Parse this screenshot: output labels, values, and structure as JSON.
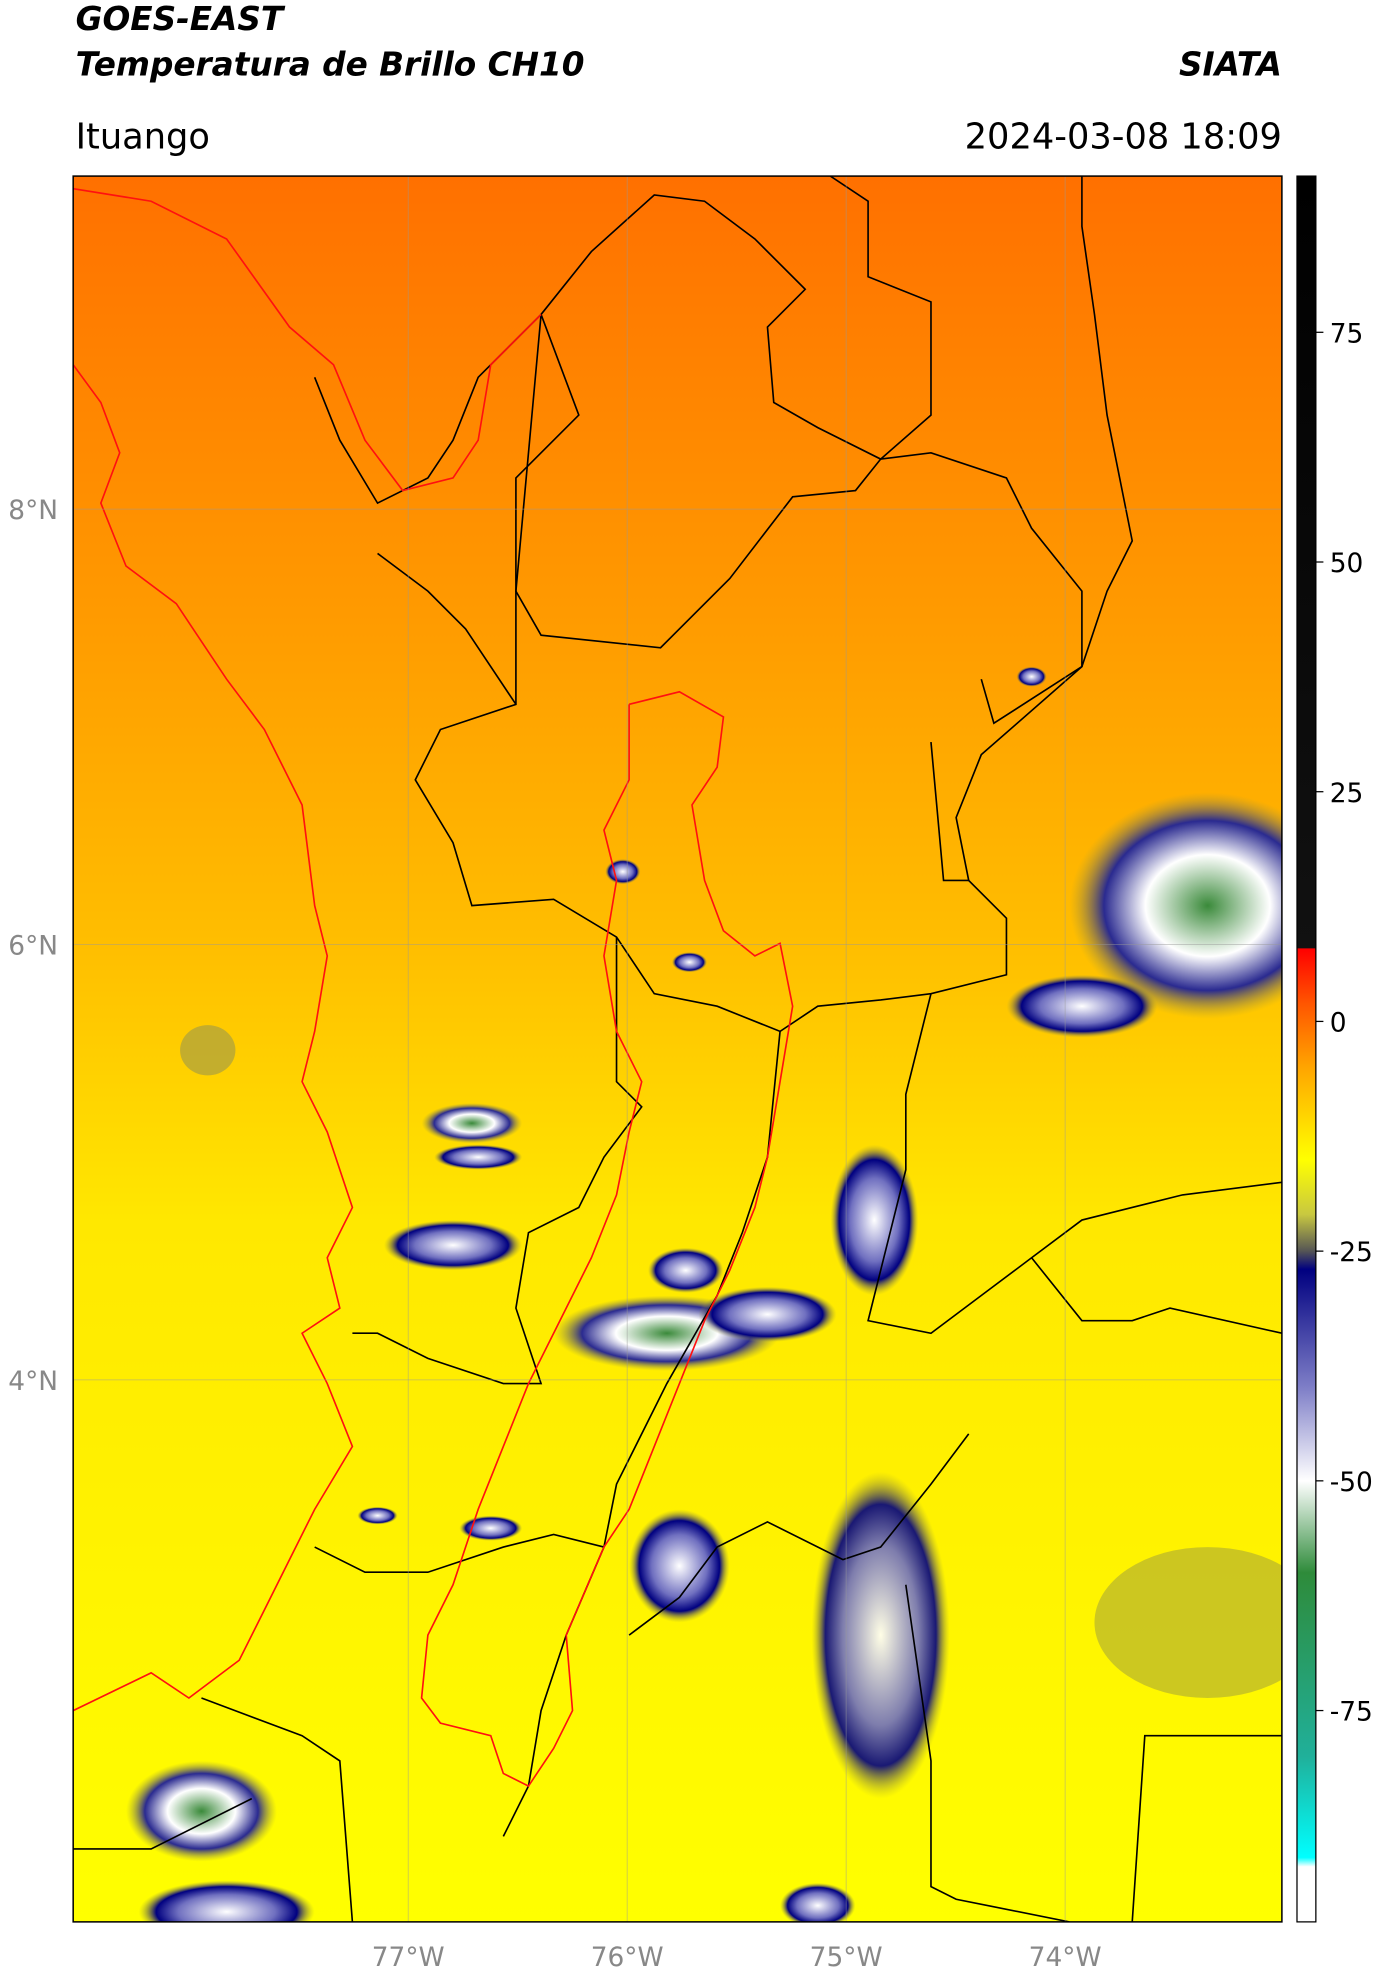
{
  "header": {
    "title": "GOES-EAST",
    "subtitle": "Temperatura de Brillo CH10",
    "agency": "SIATA",
    "location": "Ituango",
    "datetime": "2024-03-08 18:09"
  },
  "map": {
    "lon_range": [
      -78.53,
      -73.01
    ],
    "lat_range": [
      1.51,
      9.53
    ],
    "lon_ticks": [
      {
        "value": -77,
        "label": "77°W"
      },
      {
        "value": -76,
        "label": "76°W"
      },
      {
        "value": -75,
        "label": "75°W"
      },
      {
        "value": -74,
        "label": "74°W"
      }
    ],
    "lat_ticks": [
      {
        "value": 8,
        "label": "8°N"
      },
      {
        "value": 6,
        "label": "6°N"
      },
      {
        "value": 4,
        "label": "4°N"
      }
    ]
  },
  "colorbar": {
    "range": [
      -98,
      92
    ],
    "ticks": [
      75,
      50,
      25,
      0,
      -25,
      -50,
      -75
    ],
    "stops": [
      {
        "value": 92,
        "color": "#000000"
      },
      {
        "value": 8,
        "color": "#111111"
      },
      {
        "value": 7.9,
        "color": "#ff0000"
      },
      {
        "value": 2,
        "color": "#ff5500"
      },
      {
        "value": -5,
        "color": "#ffa500"
      },
      {
        "value": -15,
        "color": "#ffff00"
      },
      {
        "value": -21,
        "color": "#c8c840"
      },
      {
        "value": -25,
        "color": "#555555"
      },
      {
        "value": -27,
        "color": "#000080"
      },
      {
        "value": -40,
        "color": "#8080c8"
      },
      {
        "value": -50,
        "color": "#ffffff"
      },
      {
        "value": -60,
        "color": "#2e8b3a"
      },
      {
        "value": -80,
        "color": "#20b09a"
      },
      {
        "value": -91,
        "color": "#00ffff"
      },
      {
        "value": -92,
        "color": "#ffffff"
      },
      {
        "value": -98,
        "color": "#ffffff"
      }
    ]
  }
}
